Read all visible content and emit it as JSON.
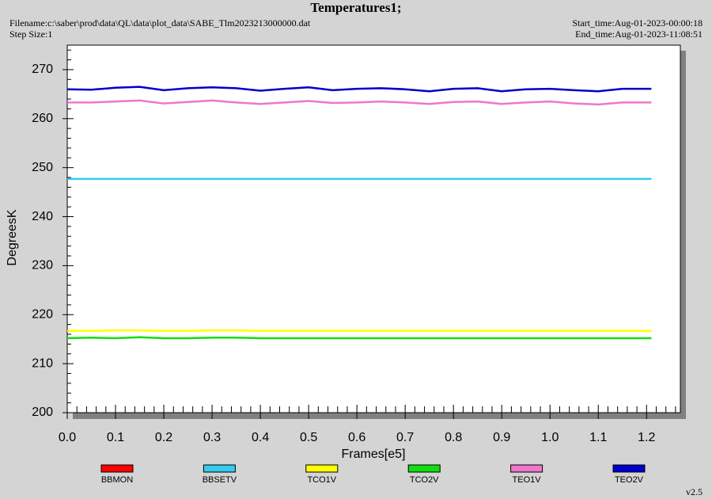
{
  "chart_data": {
    "type": "line",
    "title": "Temperatures1;",
    "filename": "Filename:c:\\saber\\prod\\data\\QL\\data\\plot_data\\SABE_Tlm2023213000000.dat",
    "step_size": "Step Size:1",
    "start_time": "Start_time:Aug-01-2023-00:00:18",
    "end_time": "End_time:Aug-01-2023-11:08:51",
    "version": "v2.5",
    "x_label": "Frames[e5]",
    "y_label": "DegreesK",
    "x": [
      0,
      0.05,
      0.1,
      0.15,
      0.2,
      0.25,
      0.3,
      0.35,
      0.4,
      0.45,
      0.5,
      0.55,
      0.6,
      0.65,
      0.7,
      0.75,
      0.8,
      0.85,
      0.9,
      0.95,
      1.0,
      1.05,
      1.1,
      1.15,
      1.21
    ],
    "xlim": [
      0,
      1.27
    ],
    "xticks": [
      {
        "value": 0,
        "label": "0.0"
      },
      0.1,
      0.2,
      0.3,
      0.4,
      0.5,
      0.6,
      0.7,
      0.8,
      0.9,
      {
        "value": 1,
        "label": "1.0"
      },
      1.1,
      1.2
    ],
    "ylim": [
      200,
      275
    ],
    "yticks": [
      200,
      210,
      220,
      230,
      240,
      250,
      260,
      270
    ],
    "series": [
      {
        "name": "BBMON",
        "color": "#ff0000",
        "values": [
          null,
          null,
          null,
          null,
          null,
          null,
          null,
          null,
          null,
          null,
          null,
          null,
          null,
          null,
          null,
          null,
          null,
          null,
          null,
          null,
          null,
          null,
          null,
          null,
          null
        ]
      },
      {
        "name": "BBSETV",
        "color": "#33ccee",
        "values": [
          247.7,
          247.7,
          247.7,
          247.7,
          247.7,
          247.7,
          247.7,
          247.7,
          247.7,
          247.7,
          247.7,
          247.7,
          247.7,
          247.7,
          247.7,
          247.7,
          247.7,
          247.7,
          247.7,
          247.7,
          247.7,
          247.7,
          247.7,
          247.7,
          247.7
        ]
      },
      {
        "name": "TCO1V",
        "color": "#ffff00",
        "values": [
          216.7,
          216.7,
          216.8,
          216.8,
          216.7,
          216.7,
          216.8,
          216.8,
          216.7,
          216.7,
          216.7,
          216.7,
          216.7,
          216.7,
          216.7,
          216.7,
          216.7,
          216.7,
          216.7,
          216.7,
          216.7,
          216.7,
          216.7,
          216.7,
          216.7
        ]
      },
      {
        "name": "TCO2V",
        "color": "#11dd11",
        "values": [
          215.2,
          215.3,
          215.2,
          215.4,
          215.2,
          215.2,
          215.3,
          215.3,
          215.2,
          215.2,
          215.2,
          215.2,
          215.2,
          215.2,
          215.2,
          215.2,
          215.2,
          215.2,
          215.2,
          215.2,
          215.2,
          215.2,
          215.2,
          215.2,
          215.2
        ]
      },
      {
        "name": "TEO1V",
        "color": "#ee77cc",
        "values": [
          263.3,
          263.3,
          263.5,
          263.7,
          263.1,
          263.4,
          263.7,
          263.3,
          263.0,
          263.3,
          263.6,
          263.2,
          263.3,
          263.5,
          263.3,
          263.0,
          263.4,
          263.5,
          263.0,
          263.3,
          263.5,
          263.1,
          262.9,
          263.3,
          263.3
        ]
      },
      {
        "name": "TEO2V",
        "color": "#0000cc",
        "values": [
          266.0,
          265.9,
          266.3,
          266.5,
          265.8,
          266.2,
          266.4,
          266.2,
          265.7,
          266.1,
          266.4,
          265.8,
          266.1,
          266.2,
          266.0,
          265.6,
          266.1,
          266.2,
          265.6,
          266.0,
          266.1,
          265.8,
          265.6,
          266.1,
          266.1
        ]
      }
    ],
    "grid": false
  }
}
